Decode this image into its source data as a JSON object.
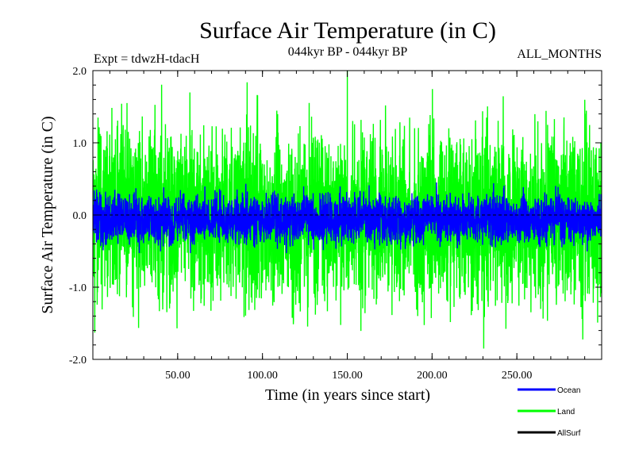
{
  "chart_data": {
    "type": "line",
    "title": "Surface Air Temperature (in C)",
    "subtitle": "044kyr BP - 044kyr BP",
    "experiment_label": "Expt = tdwzH-tdacH",
    "period_label": "ALL_MONTHS",
    "xlabel": "Time (in years since start)",
    "ylabel": "Surface Air Temperature (in C)",
    "xlim": [
      0,
      300
    ],
    "ylim": [
      -2.0,
      2.0
    ],
    "x_ticks": [
      50,
      100,
      150,
      200,
      250
    ],
    "x_tick_labels": [
      "50.00",
      "100.00",
      "150.00",
      "200.00",
      "250.00"
    ],
    "y_ticks": [
      -2.0,
      -1.0,
      0.0,
      1.0,
      2.0
    ],
    "y_tick_labels": [
      "-2.0",
      "-1.0",
      "0.0",
      "1.0",
      "2.0"
    ],
    "zero_line": {
      "value": 0.0,
      "style": "dashed"
    },
    "n_points": 3600,
    "series": [
      {
        "name": "Land",
        "color": "#00ff00",
        "amplitude": 0.62,
        "mean": 0.0,
        "max": 2.0,
        "min": -1.85,
        "peak_x": 150
      },
      {
        "name": "Ocean",
        "color": "#0000ff",
        "amplitude": 0.17,
        "mean": -0.05,
        "max": 0.45,
        "min": -0.65
      },
      {
        "name": "AllSurf",
        "color": "#000000",
        "amplitude": 0.0,
        "mean": 0.0
      }
    ],
    "legend": [
      {
        "name": "Ocean",
        "color": "#0000ff"
      },
      {
        "name": "Land",
        "color": "#00ff00"
      },
      {
        "name": "AllSurf",
        "color": "#000000"
      }
    ],
    "legend_position": "bottom-right"
  }
}
